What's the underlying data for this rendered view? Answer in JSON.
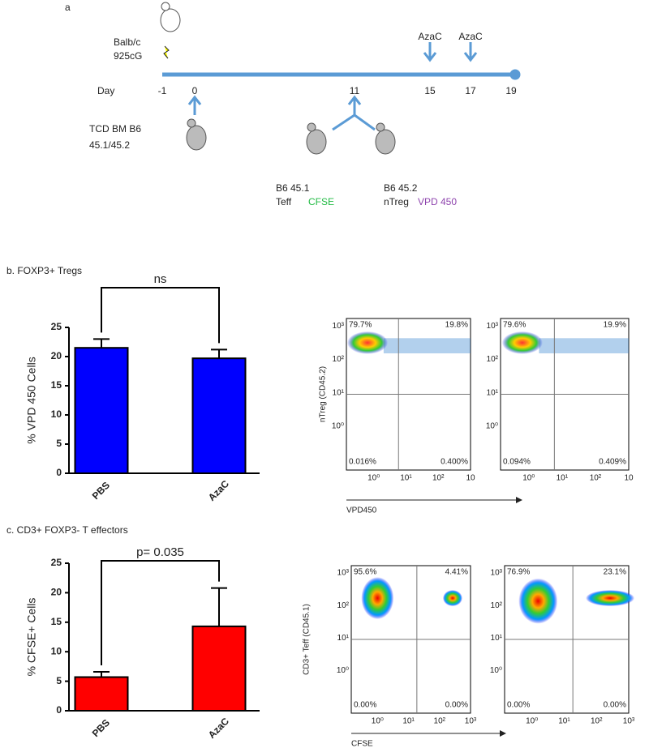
{
  "panel_a": {
    "label": "a",
    "day_label": "Day",
    "days": [
      "-1",
      "0",
      "11",
      "15",
      "17",
      "19"
    ],
    "drug": [
      "AzaC",
      "AzaC"
    ],
    "host": [
      "Balb/c",
      "925cG"
    ],
    "donor": [
      "TCD BM B6",
      "45.1/45.2"
    ],
    "teff": [
      "B6 45.1",
      "Teff",
      "CFSE"
    ],
    "treg": [
      "B6 45.2",
      "nTreg",
      "VPD 450"
    ]
  },
  "panel_b_title": "b. FOXP3+ Tregs",
  "panel_c_title": "c. CD3+ FOXP3- T effectors",
  "chart_data": [
    {
      "type": "bar",
      "ylabel": "% VPD 450 Cells",
      "categories": [
        "PBS",
        "AzaC"
      ],
      "values": [
        21.5,
        19.7
      ],
      "errors": [
        1.5,
        1.5
      ],
      "color": "#0000ff",
      "ylim": [
        0,
        25
      ],
      "yticks": [
        0,
        5,
        10,
        15,
        20,
        25
      ],
      "annotation": "ns"
    },
    {
      "type": "bar",
      "ylabel": "% CFSE+ Cells",
      "categories": [
        "PBS",
        "AzaC"
      ],
      "values": [
        5.7,
        14.3
      ],
      "errors": [
        0.9,
        6.5
      ],
      "color": "#ff0000",
      "ylim": [
        0,
        25
      ],
      "yticks": [
        0,
        5,
        10,
        15,
        20,
        25
      ],
      "annotation": "p= 0.035"
    }
  ],
  "flow_b": {
    "ylabel": "nTreg (CD45.2)",
    "xlabel": "VPD450",
    "yticks": [
      "10³",
      "10²",
      "10¹",
      "10⁰"
    ],
    "xticks": [
      "10⁰",
      "10¹",
      "10²",
      "10"
    ],
    "plots": [
      [
        "79.7%",
        "19.8%",
        "0.016%",
        "0.400%"
      ],
      [
        "79.6%",
        "19.9%",
        "0.094%",
        "0.409%"
      ]
    ]
  },
  "flow_c": {
    "ylabel": "CD3+ Teff  (CD45.1)",
    "xlabel": "CFSE",
    "yticks": [
      "10³",
      "10²",
      "10¹",
      "10⁰"
    ],
    "xticks": [
      "10⁰",
      "10¹",
      "10²",
      "10³"
    ],
    "plots": [
      [
        "95.6%",
        "4.41%",
        "0.00%",
        "0.00%"
      ],
      [
        "76.9%",
        "23.1%",
        "0.00%",
        "0.00%"
      ]
    ]
  }
}
